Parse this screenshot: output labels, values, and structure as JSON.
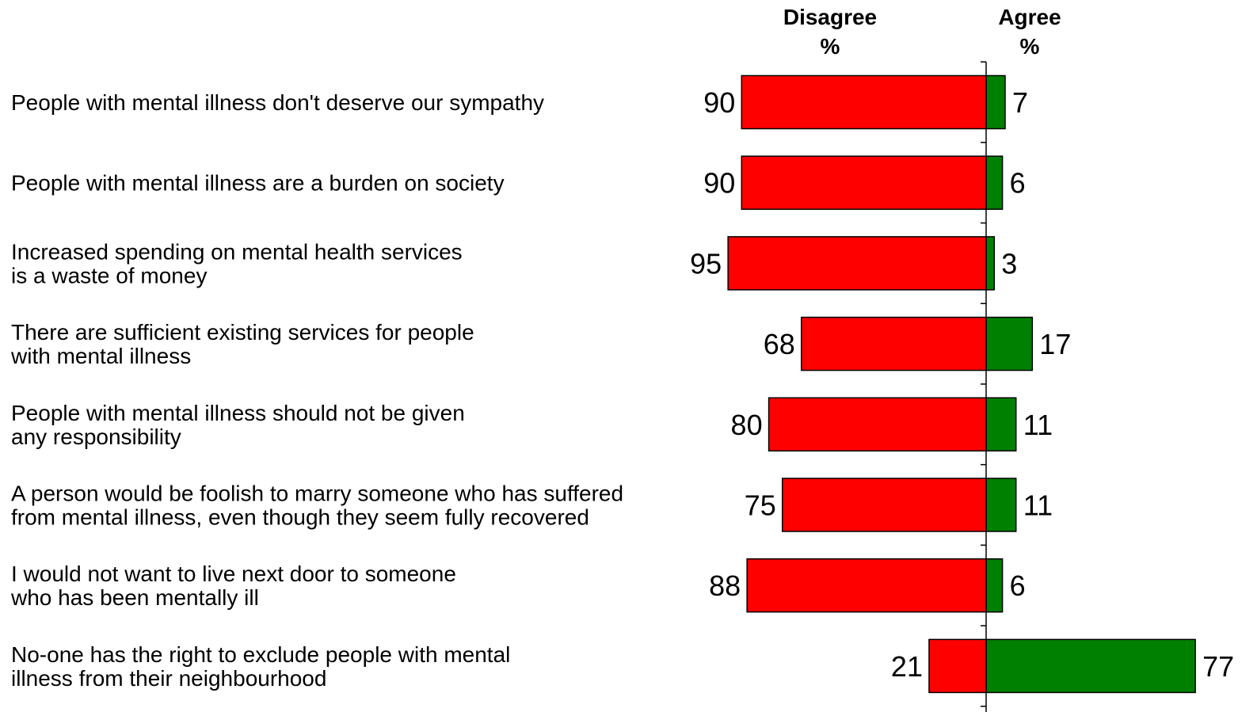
{
  "chart_data": {
    "type": "bar",
    "orientation": "horizontal-diverging",
    "headers": {
      "disagree": [
        "Disagree",
        "%"
      ],
      "agree": [
        "Agree",
        "%"
      ]
    },
    "categories": [
      [
        "People with mental illness don't deserve our sympathy"
      ],
      [
        "People with mental illness are a burden on society"
      ],
      [
        "Increased spending on mental health services",
        "is a waste of money"
      ],
      [
        "There are sufficient existing services for people",
        "with mental illness"
      ],
      [
        "People with mental illness should not be given",
        "any responsibility"
      ],
      [
        "A person would be foolish to marry someone who has suffered",
        "from mental illness, even though they seem fully recovered"
      ],
      [
        "I would not want to live next door to someone",
        "who has been mentally ill"
      ],
      [
        "No-one has the right to exclude people with mental",
        "illness from their neighbourhood"
      ]
    ],
    "series": [
      {
        "name": "Disagree",
        "color": "#ff0000",
        "values": [
          90,
          90,
          95,
          68,
          80,
          75,
          88,
          21
        ]
      },
      {
        "name": "Agree",
        "color": "#008000",
        "values": [
          7,
          6,
          3,
          17,
          11,
          11,
          6,
          77
        ]
      }
    ],
    "legend": "top"
  }
}
